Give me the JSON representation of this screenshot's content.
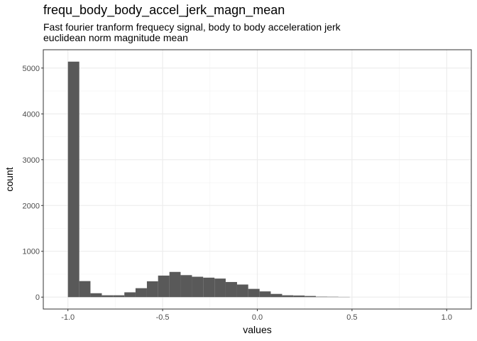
{
  "title": "frequ_body_body_accel_jerk_magn_mean",
  "subtitle_lines": [
    "Fast fourier tranform frequecy signal, body to body acceleration jerk",
    "euclidean norm magnitude mean"
  ],
  "chart_data": {
    "type": "bar",
    "subtype": "histogram",
    "xlabel": "values",
    "ylabel": "count",
    "xlim": [
      -1.13,
      1.13
    ],
    "ylim": [
      -260,
      5400
    ],
    "x_ticks": [
      -1.0,
      -0.5,
      0.0,
      0.5,
      1.0
    ],
    "x_tick_labels": [
      "-1.0",
      "-0.5",
      "0.0",
      "0.5",
      "1.0"
    ],
    "y_ticks": [
      0,
      1000,
      2000,
      3000,
      4000,
      5000
    ],
    "y_tick_labels": [
      "0",
      "1000",
      "2000",
      "3000",
      "4000",
      "5000"
    ],
    "grid": true,
    "bar_color": "#595959",
    "bin_width": 0.0595,
    "bins": [
      {
        "x0": -1.0,
        "x1": -0.94,
        "count": 5140
      },
      {
        "x0": -0.94,
        "x1": -0.881,
        "count": 350
      },
      {
        "x0": -0.881,
        "x1": -0.821,
        "count": 85
      },
      {
        "x0": -0.821,
        "x1": -0.762,
        "count": 40
      },
      {
        "x0": -0.762,
        "x1": -0.702,
        "count": 40
      },
      {
        "x0": -0.702,
        "x1": -0.643,
        "count": 105
      },
      {
        "x0": -0.643,
        "x1": -0.583,
        "count": 195
      },
      {
        "x0": -0.583,
        "x1": -0.524,
        "count": 345
      },
      {
        "x0": -0.524,
        "x1": -0.464,
        "count": 470
      },
      {
        "x0": -0.464,
        "x1": -0.405,
        "count": 550
      },
      {
        "x0": -0.405,
        "x1": -0.345,
        "count": 480
      },
      {
        "x0": -0.345,
        "x1": -0.286,
        "count": 445
      },
      {
        "x0": -0.286,
        "x1": -0.226,
        "count": 425
      },
      {
        "x0": -0.226,
        "x1": -0.167,
        "count": 405
      },
      {
        "x0": -0.167,
        "x1": -0.107,
        "count": 330
      },
      {
        "x0": -0.107,
        "x1": -0.048,
        "count": 275
      },
      {
        "x0": -0.048,
        "x1": 0.012,
        "count": 180
      },
      {
        "x0": 0.012,
        "x1": 0.071,
        "count": 125
      },
      {
        "x0": 0.071,
        "x1": 0.131,
        "count": 70
      },
      {
        "x0": 0.131,
        "x1": 0.19,
        "count": 40
      },
      {
        "x0": 0.19,
        "x1": 0.25,
        "count": 35
      },
      {
        "x0": 0.25,
        "x1": 0.309,
        "count": 25
      },
      {
        "x0": 0.309,
        "x1": 0.369,
        "count": 10
      },
      {
        "x0": 0.369,
        "x1": 0.428,
        "count": 8
      },
      {
        "x0": 0.428,
        "x1": 0.488,
        "count": 5
      }
    ]
  }
}
